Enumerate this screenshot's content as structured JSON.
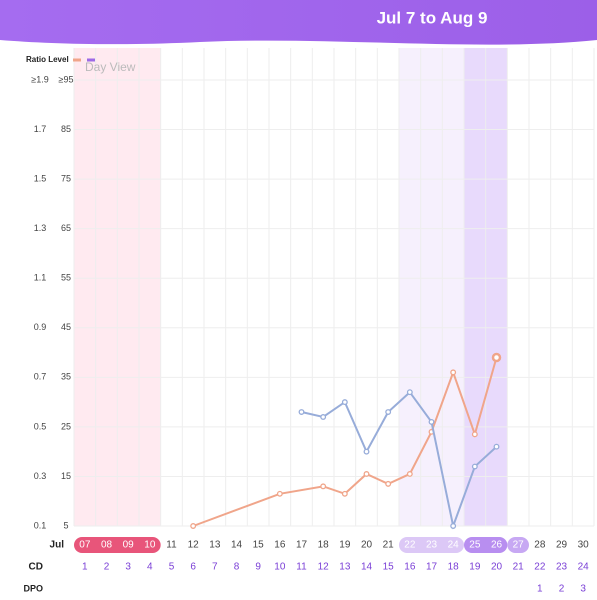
{
  "header": {
    "title": "Jul 7  to  Aug 9"
  },
  "chart_data": {
    "type": "line",
    "legend_title": "Ratio Level",
    "view_label": "Day View",
    "x_row_label": "Jul",
    "categories": [
      "07",
      "08",
      "09",
      "10",
      "11",
      "12",
      "13",
      "14",
      "15",
      "16",
      "17",
      "18",
      "19",
      "20",
      "21",
      "22",
      "23",
      "24",
      "25",
      "26",
      "27",
      "28",
      "29",
      "30"
    ],
    "cd_label": "CD",
    "cd": [
      1,
      2,
      3,
      4,
      5,
      6,
      7,
      8,
      9,
      10,
      11,
      12,
      13,
      14,
      15,
      16,
      17,
      18,
      19,
      20,
      21,
      22,
      23,
      24
    ],
    "dpo_label": "DPO",
    "dpo": [
      null,
      null,
      null,
      null,
      null,
      null,
      null,
      null,
      null,
      null,
      null,
      null,
      null,
      null,
      null,
      null,
      null,
      null,
      null,
      null,
      null,
      1,
      2,
      3
    ],
    "ylim": [
      0.1,
      1.9
    ],
    "yticks": [
      0.1,
      0.3,
      0.5,
      0.7,
      0.9,
      1.1,
      1.3,
      1.5,
      1.7,
      {
        "value": 1.9,
        "label": "≥1.9"
      }
    ],
    "y2lim": [
      5,
      95
    ],
    "y2ticks": [
      5,
      15,
      25,
      35,
      45,
      55,
      65,
      75,
      85,
      {
        "value": 95,
        "label": "≥95"
      }
    ],
    "grid": true,
    "series": [
      {
        "color": "#f0a58a",
        "x": [
          12,
          16,
          18,
          19,
          20,
          21,
          22,
          23,
          24,
          25,
          26
        ],
        "values": [
          0.1,
          0.23,
          0.26,
          0.23,
          0.31,
          0.27,
          0.31,
          0.48,
          0.72,
          0.47,
          0.78
        ]
      },
      {
        "color": "#97acd9",
        "axis": "y2",
        "x": [
          17,
          18,
          19,
          20,
          21,
          22,
          23,
          24,
          25,
          26
        ],
        "values": [
          28,
          27,
          30,
          20,
          28,
          32,
          26,
          5,
          17,
          21
        ]
      }
    ]
  }
}
